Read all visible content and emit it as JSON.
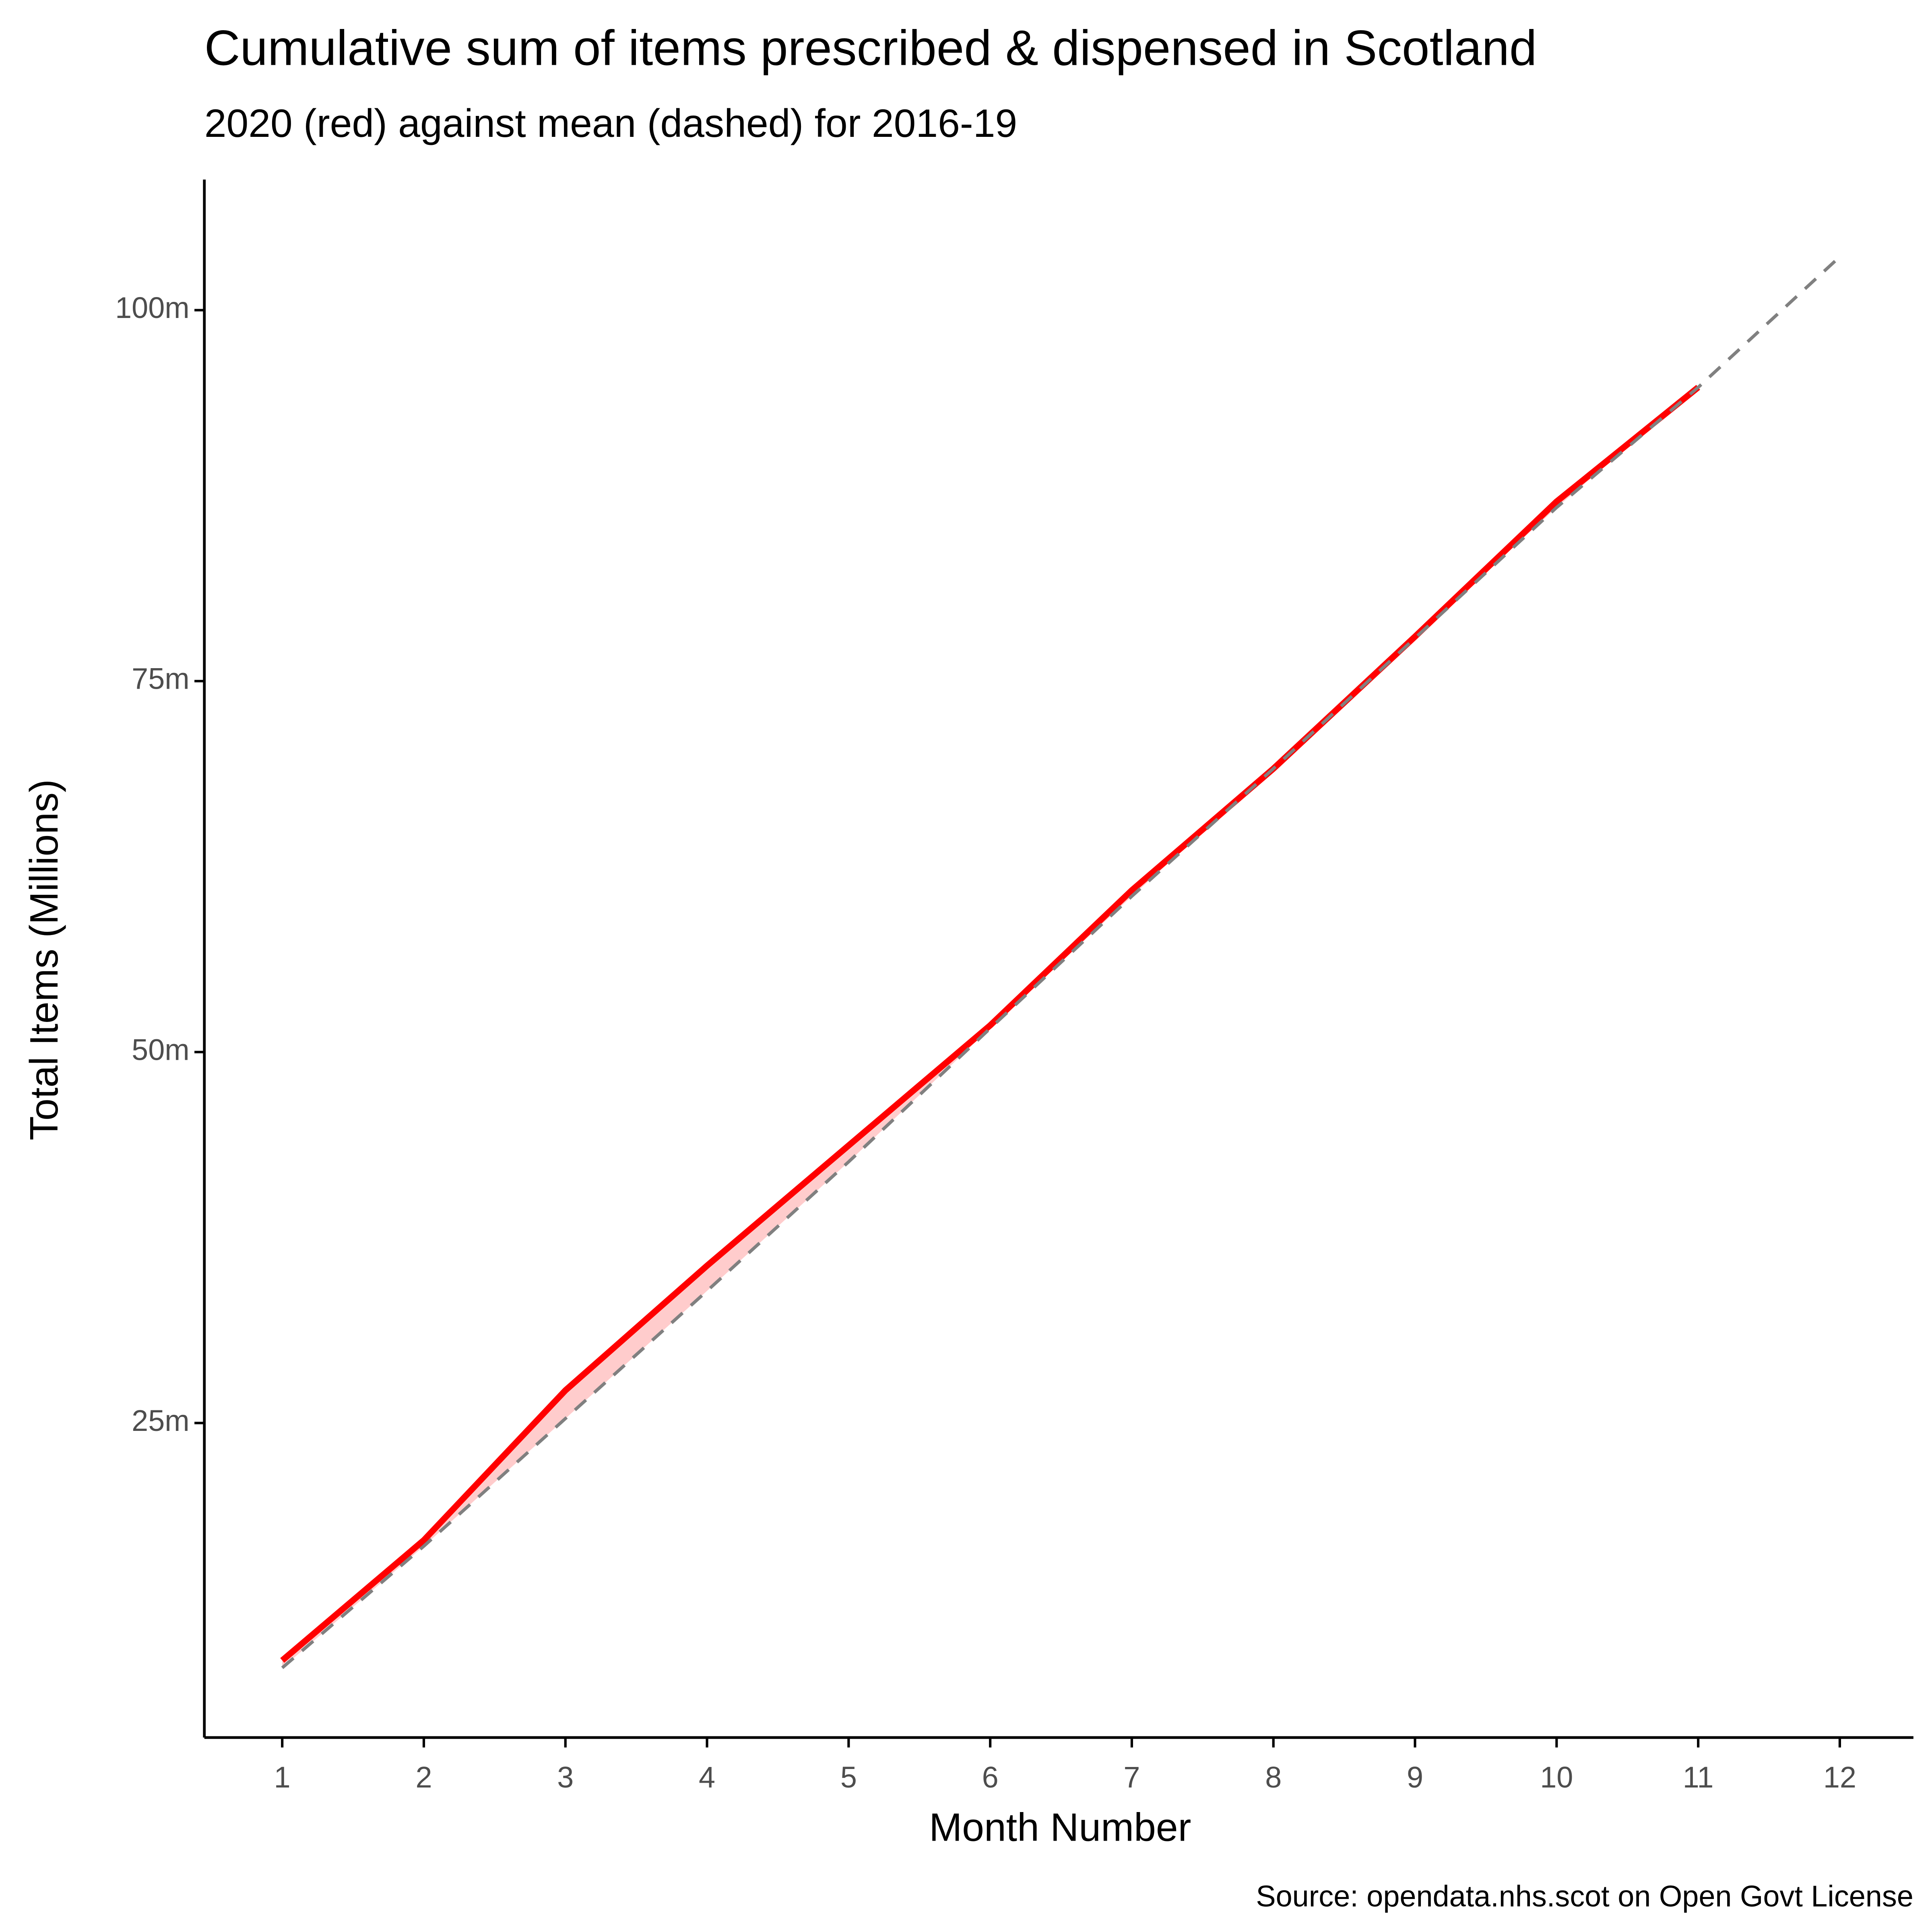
{
  "chart_data": {
    "type": "line",
    "title": "Cumulative sum of items prescribed & dispensed in Scotland",
    "subtitle": "2020 (red) against mean (dashed) for 2016-19",
    "x_label": "Month Number",
    "y_label": "Total Items (Millions)",
    "caption": "Source: opendata.nhs.scot on Open Govt License",
    "x": [
      1,
      2,
      3,
      4,
      5,
      6,
      7,
      8,
      9,
      10,
      11,
      12
    ],
    "series": [
      {
        "name": "2020",
        "color": "#ff0000",
        "linestyle": "solid",
        "values": [
          9.0,
          17.1,
          27.2,
          35.6,
          43.7,
          51.8,
          60.9,
          69.1,
          78.0,
          87.1,
          94.8,
          null
        ]
      },
      {
        "name": "mean",
        "color": "#808080",
        "linestyle": "dashed",
        "values": [
          8.5,
          16.7,
          25.3,
          33.9,
          42.6,
          51.6,
          60.5,
          69.1,
          77.9,
          86.7,
          94.8,
          103.6
        ]
      }
    ],
    "ribbon_color": "#ffcccc",
    "xlim": [
      0.45,
      12.52
    ],
    "ylim": [
      3.8,
      108.8
    ],
    "xticks": [
      1,
      2,
      3,
      4,
      5,
      6,
      7,
      8,
      9,
      10,
      11,
      12
    ],
    "yticks": [
      {
        "value": 25,
        "label": "25m"
      },
      {
        "value": 50,
        "label": "50m"
      },
      {
        "value": 75,
        "label": "75m"
      },
      {
        "value": 100,
        "label": "100m"
      }
    ],
    "grid": false
  }
}
